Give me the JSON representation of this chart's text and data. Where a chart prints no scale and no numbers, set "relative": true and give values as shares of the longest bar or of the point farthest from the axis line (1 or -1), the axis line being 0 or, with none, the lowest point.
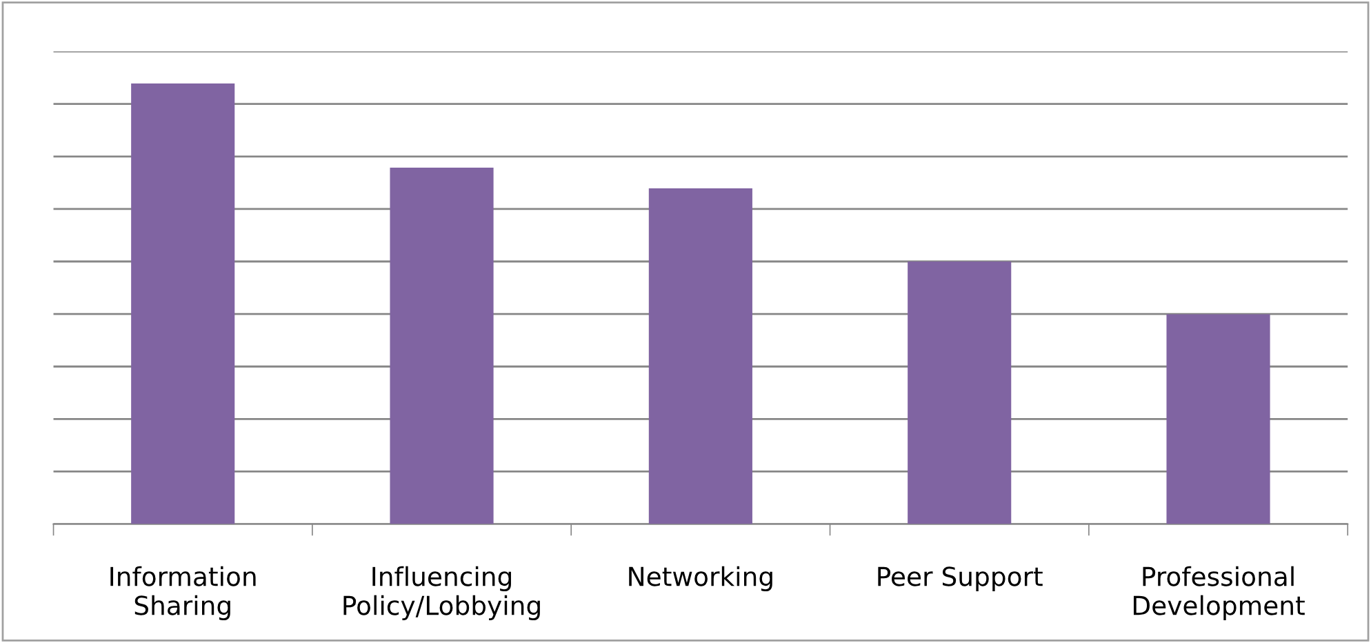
{
  "chart_data": {
    "type": "bar",
    "relative": true,
    "categories": [
      "Information\nSharing",
      "Influencing\nPolicy/Lobbying",
      "Networking",
      "Peer Support",
      "Professional\nDevelopment"
    ],
    "values": [
      1,
      0.809,
      0.762,
      0.596,
      0.476
    ],
    "color": "#8064a2",
    "grid": "y",
    "legend": false
  }
}
